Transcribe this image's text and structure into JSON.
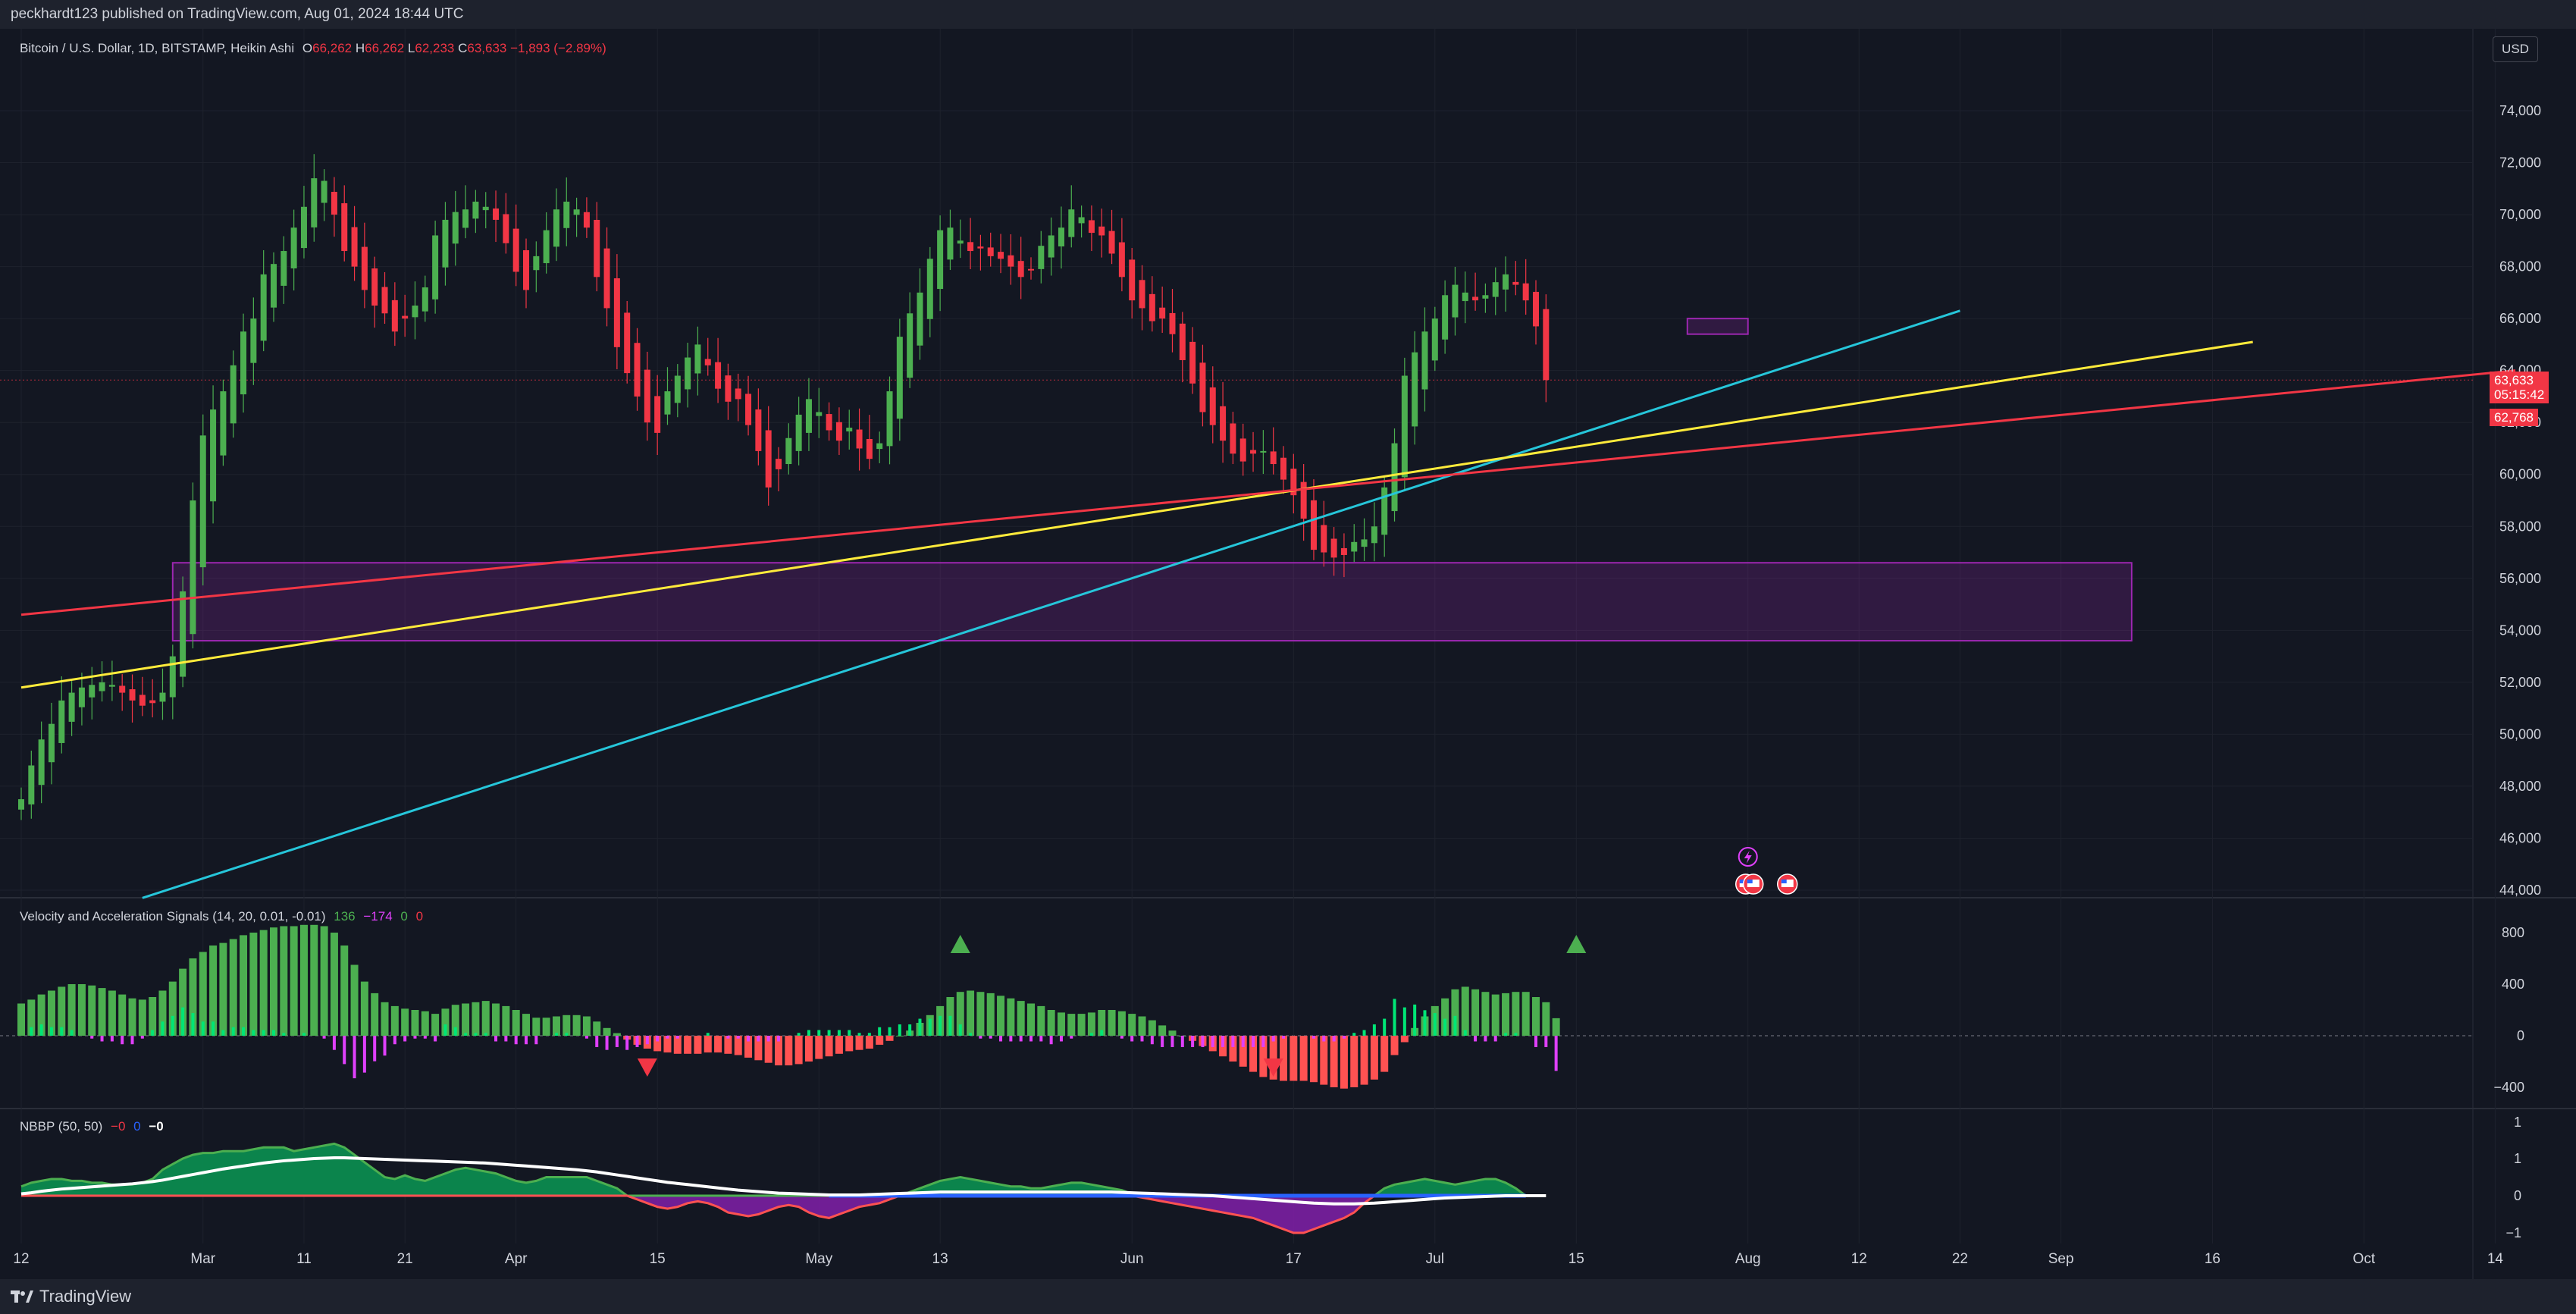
{
  "header": {
    "published": "peckhardt123 published on TradingView.com, Aug 01, 2024 18:44 UTC"
  },
  "footer": {
    "brand": "TradingView"
  },
  "main_legend": {
    "title": "Bitcoin / U.S. Dollar, 1D, BITSTAMP, Heikin Ashi",
    "o_label": "O",
    "o": "66,262",
    "h_label": "H",
    "h": "66,262",
    "l_label": "L",
    "l": "62,233",
    "c_label": "C",
    "c": "63,633",
    "chg": "−1,893 (−2.89%)"
  },
  "currency": "USD",
  "price_tags": {
    "last": "63,633",
    "countdown": "05:15:42",
    "low": "62,768"
  },
  "colors": {
    "up": "#4caf50",
    "down": "#f23645",
    "cyan": "#26c6da",
    "yellow": "#ffeb3b",
    "red_line": "#f23645",
    "zone": "#9c27b0"
  },
  "icons": [
    "lightning-icon",
    "us-flag-icon",
    "us-flag-icon",
    "us-flag-icon"
  ],
  "vel_legend": {
    "title": "Velocity and Acceleration Signals (14, 20, 0.01, -0.01)",
    "v1": "136",
    "v2": "−174",
    "v3": "0",
    "v4": "0"
  },
  "nbbp_legend": {
    "title": "NBBP (50, 50)",
    "v1": "−0",
    "v2": "0",
    "v3": "−0"
  },
  "chart_data": [
    {
      "type": "candlestick",
      "title": "Bitcoin / U.S. Dollar, 1D, BITSTAMP, Heikin Ashi",
      "x_start": "2024-02-12",
      "close": [
        47500,
        48800,
        49800,
        50400,
        51300,
        51600,
        51800,
        51900,
        52000,
        51900,
        51600,
        51300,
        51100,
        51200,
        51600,
        53000,
        55500,
        59000,
        61500,
        62500,
        63200,
        64200,
        65500,
        66000,
        67700,
        68100,
        68600,
        69500,
        70300,
        71400,
        71300,
        70000,
        68600,
        68000,
        67100,
        66500,
        66200,
        65500,
        66000,
        66500,
        67200,
        69200,
        69800,
        70100,
        70200,
        70500,
        70300,
        69800,
        68900,
        67800,
        67100,
        68400,
        69400,
        70200,
        70500,
        70200,
        69500,
        67600,
        66400,
        64900,
        63900,
        63000,
        62000,
        61600,
        63200,
        63800,
        64500,
        65000,
        64200,
        63300,
        62800,
        62900,
        61900,
        60900,
        59500,
        60200,
        61400,
        62300,
        62900,
        62400,
        61700,
        61300,
        61800,
        61000,
        60600,
        61200,
        63200,
        65300,
        66200,
        67000,
        68300,
        69400,
        69500,
        69000,
        68600,
        68700,
        68400,
        68300,
        68000,
        67600,
        67900,
        68800,
        69200,
        69500,
        70200,
        69900,
        69300,
        69200,
        68500,
        67600,
        66700,
        66400,
        65900,
        66000,
        65400,
        64400,
        63500,
        62400,
        61900,
        61300,
        60800,
        60500,
        60800,
        60900,
        60400,
        59800,
        59200,
        58300,
        57100,
        57000,
        56800,
        56900,
        57400,
        57500,
        58000,
        59500,
        61200,
        63800,
        64700,
        65500,
        66000,
        66900,
        67300,
        67000,
        66700,
        66900,
        67400,
        67700,
        67300,
        66700,
        65700,
        63633
      ],
      "ylim": [
        44000,
        75000
      ],
      "y_ticks": [
        "74,000",
        "72,000",
        "70,000",
        "68,000",
        "66,000",
        "64,000",
        "62,000",
        "60,000",
        "58,000",
        "56,000",
        "54,000",
        "52,000",
        "50,000",
        "48,000",
        "46,000",
        "44,000"
      ],
      "x_ticks": [
        {
          "label": "12",
          "x": "2024-02-12"
        },
        {
          "label": "Mar",
          "x": "2024-03-01"
        },
        {
          "label": "11",
          "x": "2024-03-11"
        },
        {
          "label": "21",
          "x": "2024-03-21"
        },
        {
          "label": "Apr",
          "x": "2024-04-01"
        },
        {
          "label": "15",
          "x": "2024-04-15"
        },
        {
          "label": "May",
          "x": "2024-05-01"
        },
        {
          "label": "13",
          "x": "2024-05-13"
        },
        {
          "label": "Jun",
          "x": "2024-06-01"
        },
        {
          "label": "17",
          "x": "2024-06-17"
        },
        {
          "label": "Jul",
          "x": "2024-07-01"
        },
        {
          "label": "15",
          "x": "2024-07-15"
        },
        {
          "label": "Aug",
          "x": "2024-08-01"
        },
        {
          "label": "12",
          "x": "2024-08-12"
        },
        {
          "label": "22",
          "x": "2024-08-22"
        },
        {
          "label": "Sep",
          "x": "2024-09-01"
        },
        {
          "label": "16",
          "x": "2024-09-16"
        },
        {
          "label": "Oct",
          "x": "2024-10-01"
        },
        {
          "label": "14",
          "x": "2024-10-14"
        }
      ],
      "trendlines": [
        {
          "color": "#26c6da",
          "from": [
            "2024-02-24",
            43700
          ],
          "to": [
            "2024-08-22",
            66300
          ]
        },
        {
          "color": "#ffeb3b",
          "from": [
            "2024-02-12",
            51800
          ],
          "to": [
            "2024-09-20",
            65100
          ]
        },
        {
          "color": "#f23645",
          "from": [
            "2024-02-12",
            54600
          ],
          "to": [
            "2024-10-16",
            64000
          ]
        }
      ],
      "zones": [
        {
          "from": [
            "2024-02-27",
            56600
          ],
          "to": [
            "2024-09-08",
            53600
          ]
        },
        {
          "from": [
            "2024-07-26",
            66000
          ],
          "to": [
            "2024-08-01",
            65400
          ]
        }
      ],
      "hline": 63633
    },
    {
      "type": "bar",
      "title": "Velocity and Acceleration Signals (14, 20, 0.01, -0.01)",
      "ylim": [
        -500,
        900
      ],
      "y_ticks": [
        "800",
        "400",
        "0",
        "−400"
      ],
      "velocity": [
        250,
        280,
        320,
        350,
        380,
        400,
        400,
        390,
        370,
        350,
        320,
        290,
        280,
        300,
        350,
        420,
        520,
        600,
        650,
        700,
        720,
        750,
        780,
        800,
        820,
        840,
        850,
        850,
        860,
        860,
        850,
        800,
        700,
        550,
        420,
        330,
        260,
        230,
        210,
        200,
        190,
        170,
        210,
        240,
        250,
        260,
        270,
        250,
        230,
        200,
        170,
        140,
        140,
        150,
        160,
        160,
        150,
        110,
        60,
        20,
        -30,
        -70,
        -100,
        -120,
        -130,
        -140,
        -140,
        -140,
        -130,
        -130,
        -140,
        -150,
        -170,
        -190,
        -210,
        -230,
        -230,
        -220,
        -200,
        -180,
        -160,
        -140,
        -120,
        -110,
        -100,
        -70,
        -40,
        0,
        40,
        100,
        160,
        230,
        300,
        340,
        350,
        340,
        330,
        310,
        290,
        270,
        250,
        230,
        200,
        180,
        170,
        170,
        180,
        200,
        200,
        190,
        170,
        150,
        120,
        80,
        40,
        0,
        -40,
        -80,
        -120,
        -160,
        -200,
        -240,
        -280,
        -320,
        -340,
        -350,
        -350,
        -350,
        -360,
        -380,
        -400,
        -410,
        -400,
        -380,
        -340,
        -280,
        -150,
        -50,
        60,
        150,
        230,
        290,
        360,
        380,
        360,
        340,
        320,
        330,
        340,
        340,
        300,
        260,
        136
      ],
      "arrows_up": [
        "2024-05-15",
        "2024-07-15"
      ],
      "arrows_down": [
        "2024-04-14",
        "2024-06-15"
      ]
    },
    {
      "type": "area",
      "title": "NBBP (50, 50)",
      "ylim": [
        -1.4,
        1.7
      ],
      "y_ticks": [
        "1",
        "1",
        "0",
        "−1"
      ],
      "signal": [
        0.25,
        0.35,
        0.4,
        0.45,
        0.45,
        0.4,
        0.4,
        0.35,
        0.35,
        0.3,
        0.3,
        0.3,
        0.35,
        0.45,
        0.7,
        0.85,
        1.0,
        1.1,
        1.15,
        1.15,
        1.2,
        1.2,
        1.2,
        1.25,
        1.3,
        1.3,
        1.3,
        1.2,
        1.25,
        1.3,
        1.35,
        1.4,
        1.3,
        1.1,
        0.9,
        0.7,
        0.5,
        0.45,
        0.55,
        0.45,
        0.4,
        0.5,
        0.6,
        0.7,
        0.75,
        0.7,
        0.65,
        0.6,
        0.5,
        0.4,
        0.35,
        0.4,
        0.5,
        0.5,
        0.5,
        0.5,
        0.5,
        0.4,
        0.3,
        0.2,
        0.0,
        -0.1,
        -0.2,
        -0.3,
        -0.35,
        -0.3,
        -0.2,
        -0.15,
        -0.2,
        -0.3,
        -0.45,
        -0.5,
        -0.55,
        -0.5,
        -0.4,
        -0.3,
        -0.25,
        -0.3,
        -0.45,
        -0.55,
        -0.6,
        -0.5,
        -0.4,
        -0.3,
        -0.25,
        -0.2,
        -0.1,
        0.0,
        0.1,
        0.2,
        0.3,
        0.4,
        0.45,
        0.5,
        0.45,
        0.4,
        0.35,
        0.3,
        0.25,
        0.25,
        0.2,
        0.2,
        0.25,
        0.3,
        0.35,
        0.35,
        0.3,
        0.25,
        0.2,
        0.15,
        0.05,
        -0.05,
        -0.1,
        -0.15,
        -0.2,
        -0.25,
        -0.3,
        -0.35,
        -0.4,
        -0.45,
        -0.5,
        -0.55,
        -0.6,
        -0.7,
        -0.8,
        -0.9,
        -1.0,
        -1.0,
        -0.9,
        -0.8,
        -0.7,
        -0.6,
        -0.45,
        -0.2,
        0.0,
        0.2,
        0.3,
        0.35,
        0.4,
        0.45,
        0.4,
        0.35,
        0.3,
        0.35,
        0.4,
        0.45,
        0.45,
        0.35,
        0.2,
        0.0
      ],
      "baseline": [
        0.05,
        0.08,
        0.12,
        0.15,
        0.18,
        0.2,
        0.22,
        0.24,
        0.26,
        0.28,
        0.3,
        0.32,
        0.35,
        0.38,
        0.42,
        0.47,
        0.52,
        0.57,
        0.62,
        0.67,
        0.72,
        0.76,
        0.8,
        0.84,
        0.88,
        0.91,
        0.94,
        0.96,
        0.98,
        1.0,
        1.01,
        1.02,
        1.02,
        1.01,
        1.0,
        0.99,
        0.98,
        0.97,
        0.96,
        0.95,
        0.94,
        0.93,
        0.92,
        0.91,
        0.9,
        0.89,
        0.88,
        0.86,
        0.84,
        0.82,
        0.8,
        0.78,
        0.76,
        0.74,
        0.72,
        0.7,
        0.67,
        0.64,
        0.6,
        0.56,
        0.52,
        0.48,
        0.44,
        0.4,
        0.36,
        0.33,
        0.3,
        0.27,
        0.24,
        0.21,
        0.18,
        0.15,
        0.13,
        0.11,
        0.09,
        0.07,
        0.06,
        0.05,
        0.04,
        0.03,
        0.02,
        0.02,
        0.02,
        0.02,
        0.03,
        0.04,
        0.05,
        0.06,
        0.07,
        0.08,
        0.09,
        0.1,
        0.1,
        0.1,
        0.1,
        0.1,
        0.1,
        0.1,
        0.1,
        0.1,
        0.1,
        0.1,
        0.1,
        0.1,
        0.1,
        0.1,
        0.1,
        0.1,
        0.1,
        0.09,
        0.08,
        0.07,
        0.06,
        0.05,
        0.04,
        0.03,
        0.02,
        0.01,
        0.0,
        -0.02,
        -0.04,
        -0.06,
        -0.08,
        -0.1,
        -0.12,
        -0.14,
        -0.16,
        -0.18,
        -0.2,
        -0.21,
        -0.22,
        -0.22,
        -0.22,
        -0.21,
        -0.2,
        -0.18,
        -0.16,
        -0.14,
        -0.12,
        -0.1,
        -0.08,
        -0.06,
        -0.05,
        -0.04,
        -0.03,
        -0.02,
        -0.01,
        0.0,
        0.0,
        0.0,
        0.0,
        0.0
      ]
    }
  ]
}
